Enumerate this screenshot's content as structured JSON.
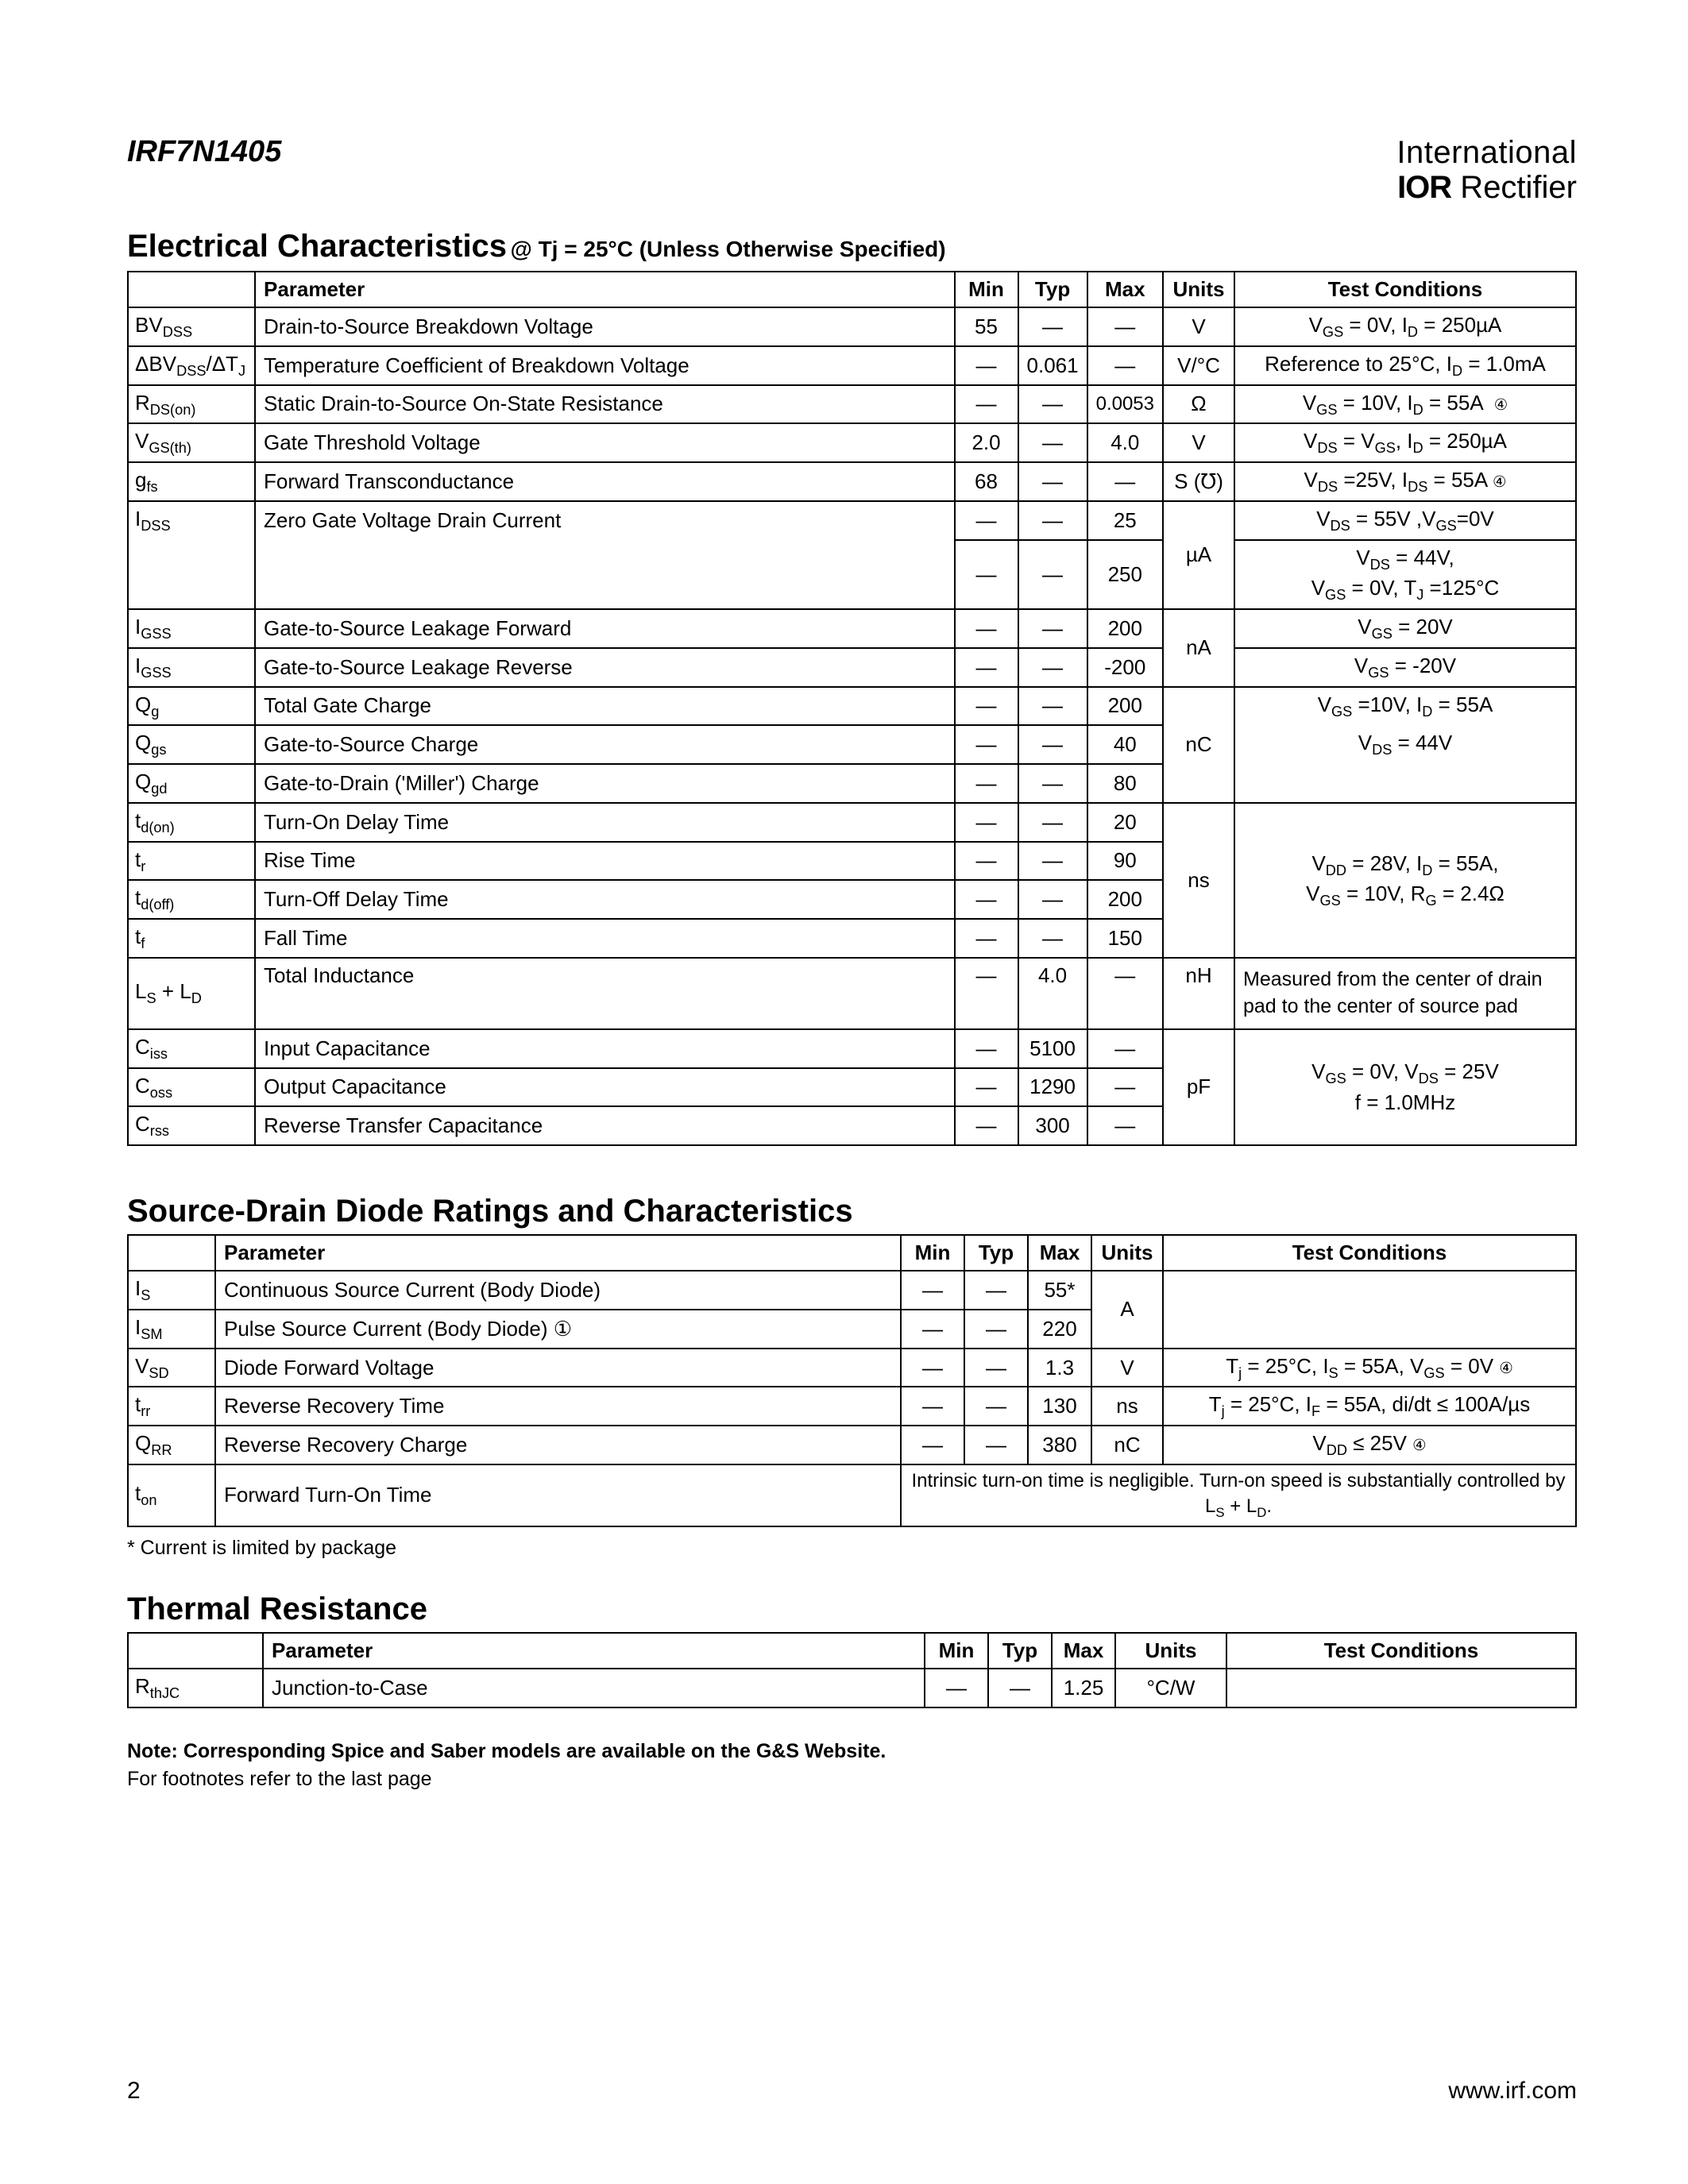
{
  "header": {
    "part_number": "IRF7N1405",
    "brand_top": "International",
    "brand_ior": "IOR",
    "brand_rest": " Rectifier"
  },
  "section1": {
    "title": "Electrical Characteristics",
    "subtitle": " @ Tj = 25°C (Unless Otherwise Specified)",
    "headers": {
      "param": "Parameter",
      "min": "Min",
      "typ": "Typ",
      "max": "Max",
      "units": "Units",
      "cond": "Test Conditions"
    },
    "rows": [
      {
        "sym_html": "BV<sub>DSS</sub>",
        "param": "Drain-to-Source Breakdown Voltage",
        "min": "55",
        "typ": "—",
        "max": "—",
        "units": "V",
        "cond_html": "V<sub>GS</sub> = 0V, I<sub>D</sub> = 250µA"
      },
      {
        "sym_html": "ΔBV<sub>DSS</sub>/ΔT<sub>J</sub>",
        "param": "Temperature Coefficient of Breakdown Voltage",
        "min": "—",
        "typ": "0.061",
        "max": "—",
        "units": "V/°C",
        "cond_html": "Reference to 25°C, I<sub>D</sub> = 1.0mA"
      },
      {
        "sym_html": "R<sub>DS(on)</sub>",
        "param": "Static Drain-to-Source On-State Resistance",
        "min": "—",
        "typ": "—",
        "max": "0.0053",
        "units": "Ω",
        "cond_html": "V<sub>GS</sub> = 10V, I<sub>D</sub> = 55A &nbsp;<span class='circled'>④</span>"
      },
      {
        "sym_html": "V<sub>GS(th)</sub>",
        "param": "Gate Threshold Voltage",
        "min": "2.0",
        "typ": "—",
        "max": "4.0",
        "units": "V",
        "cond_html": "V<sub>DS</sub> = V<sub>GS</sub>, I<sub>D</sub> = 250µA"
      },
      {
        "sym_html": "g<sub>fs</sub>",
        "param": "Forward Transconductance",
        "min": "68",
        "typ": "—",
        "max": "—",
        "units": "S (℧)",
        "cond_html": "V<sub>DS</sub> =25V, I<sub>DS</sub> = 55A <span class='circled'>④</span>"
      }
    ],
    "idss": {
      "sym_html": "I<sub>DSS</sub>",
      "param": "Zero Gate Voltage Drain Current",
      "r1": {
        "min": "—",
        "typ": "—",
        "max": "25",
        "cond_html": "V<sub>DS</sub> = 55V ,V<sub>GS</sub>=0V"
      },
      "r2": {
        "min": "—",
        "typ": "—",
        "max": "250",
        "cond_html": "V<sub>DS</sub> = 44V,<br>V<sub>GS</sub> = 0V, T<sub>J</sub> =125°C"
      },
      "units": "µA"
    },
    "igss1": {
      "sym_html": "I<sub>GSS</sub>",
      "param": "Gate-to-Source Leakage Forward",
      "min": "—",
      "typ": "—",
      "max": "200",
      "cond_html": "V<sub>GS</sub> = 20V"
    },
    "igss2": {
      "sym_html": "I<sub>GSS</sub>",
      "param": "Gate-to-Source Leakage Reverse",
      "min": "—",
      "typ": "—",
      "max": "-200",
      "cond_html": "V<sub>GS</sub> = -20V"
    },
    "igss_units": "nA",
    "qg": {
      "sym_html": "Q<sub>g</sub>",
      "param": "Total Gate Charge",
      "min": "—",
      "typ": "—",
      "max": "200",
      "cond_html": "V<sub>GS</sub> =10V, I<sub>D</sub> = 55A"
    },
    "qgs": {
      "sym_html": "Q<sub>gs</sub>",
      "param": "Gate-to-Source Charge",
      "min": "—",
      "typ": "—",
      "max": "40",
      "cond_html": "V<sub>DS</sub> = 44V"
    },
    "qgd": {
      "sym_html": "Q<sub>gd</sub>",
      "param": "Gate-to-Drain ('Miller') Charge",
      "min": "—",
      "typ": "—",
      "max": "80"
    },
    "q_units": "nC",
    "tdon": {
      "sym_html": "t<sub>d(on)</sub>",
      "param": "Turn-On Delay Time",
      "min": "—",
      "typ": "—",
      "max": "20"
    },
    "tr": {
      "sym_html": "t<sub>r</sub>",
      "param": "Rise Time",
      "min": "—",
      "typ": "—",
      "max": "90"
    },
    "tdoff": {
      "sym_html": "t<sub>d(off)</sub>",
      "param": "Turn-Off Delay Time",
      "min": "—",
      "typ": "—",
      "max": "200"
    },
    "tf": {
      "sym_html": "t<sub>f</sub>",
      "param": "Fall Time",
      "min": "—",
      "typ": "—",
      "max": "150"
    },
    "t_units": "ns",
    "t_cond_html": "V<sub>DD</sub> = 28V, I<sub>D</sub> =  55A,<br>V<sub>GS</sub> = 10V, R<sub>G</sub> = 2.4Ω",
    "lsld": {
      "sym_html": "L<sub>S</sub> + L<sub>D</sub>",
      "param": "Total Inductance",
      "min": "—",
      "typ": "4.0",
      "max": "—",
      "units": "nH",
      "cond": "Measured from the center of drain pad to the center of source pad"
    },
    "ciss": {
      "sym_html": "C<sub>iss</sub>",
      "param": "Input Capacitance",
      "min": "—",
      "typ": "5100",
      "max": "—"
    },
    "coss": {
      "sym_html": "C<sub>oss</sub>",
      "param": "Output Capacitance",
      "min": "—",
      "typ": "1290",
      "max": "—"
    },
    "crss": {
      "sym_html": "C<sub>rss</sub>",
      "param": "Reverse Transfer Capacitance",
      "min": "—",
      "typ": "300",
      "max": "—"
    },
    "c_units": "pF",
    "c_cond_html": "V<sub>GS</sub> = 0V, V<sub>DS</sub> = 25V<br>f = 1.0MHz"
  },
  "section2": {
    "title": "Source-Drain Diode Ratings and Characteristics",
    "headers": {
      "param": "Parameter",
      "min": "Min",
      "typ": "Typ",
      "max": "Max",
      "units": "Units",
      "cond": "Test Conditions"
    },
    "is": {
      "sym_html": "I<sub>S</sub>",
      "param": "Continuous Source Current (Body Diode)",
      "min": "—",
      "typ": "—",
      "max": "55*"
    },
    "ism": {
      "sym_html": "I<sub>SM</sub>",
      "param": "Pulse Source Current (Body Diode) ①",
      "min": "—",
      "typ": "—",
      "max": "220"
    },
    "i_units": "A",
    "vsd": {
      "sym_html": "V<sub>SD</sub>",
      "param": "Diode Forward Voltage",
      "min": "—",
      "typ": "—",
      "max": "1.3",
      "units": "V",
      "cond_html": "T<sub>j</sub> = 25°C, I<sub>S</sub> = 55A, V<sub>GS</sub> = 0V <span class='circled'>④</span>"
    },
    "trr": {
      "sym_html": "t<sub>rr</sub>",
      "param": "Reverse Recovery Time",
      "min": "—",
      "typ": "—",
      "max": "130",
      "units": "ns",
      "cond_html": "T<sub>j</sub> = 25°C, I<sub>F</sub> = 55A, di/dt ≤ 100A/µs"
    },
    "qrr": {
      "sym_html": "Q<sub>RR</sub>",
      "param": "Reverse Recovery Charge",
      "min": "—",
      "typ": "—",
      "max": "380",
      "units": "nC",
      "cond_html": "V<sub>DD</sub> ≤ 25V <span class='circled'>④</span>"
    },
    "ton": {
      "sym_html": "t<sub>on</sub>",
      "param": "Forward Turn-On Time",
      "cond_html": "Intrinsic turn-on time is negligible. Turn-on speed is substantially controlled by L<sub>S</sub> + L<sub>D</sub>."
    }
  },
  "footnote1": "* Current is limited by package",
  "section3": {
    "title": "Thermal Resistance",
    "headers": {
      "param": "Parameter",
      "min": "Min",
      "typ": "Typ",
      "max": "Max",
      "units": "Units",
      "cond": "Test Conditions"
    },
    "row": {
      "sym_html": "R<sub>thJC</sub>",
      "param": "Junction-to-Case",
      "min": "—",
      "typ": "—",
      "max": "1.25",
      "units": "°C/W",
      "cond": ""
    }
  },
  "notes": {
    "bold": "Note: Corresponding Spice and Saber models are available on the G&S Website.",
    "normal": "For footnotes refer to the last page"
  },
  "footer": {
    "page": "2",
    "url": "www.irf.com"
  }
}
